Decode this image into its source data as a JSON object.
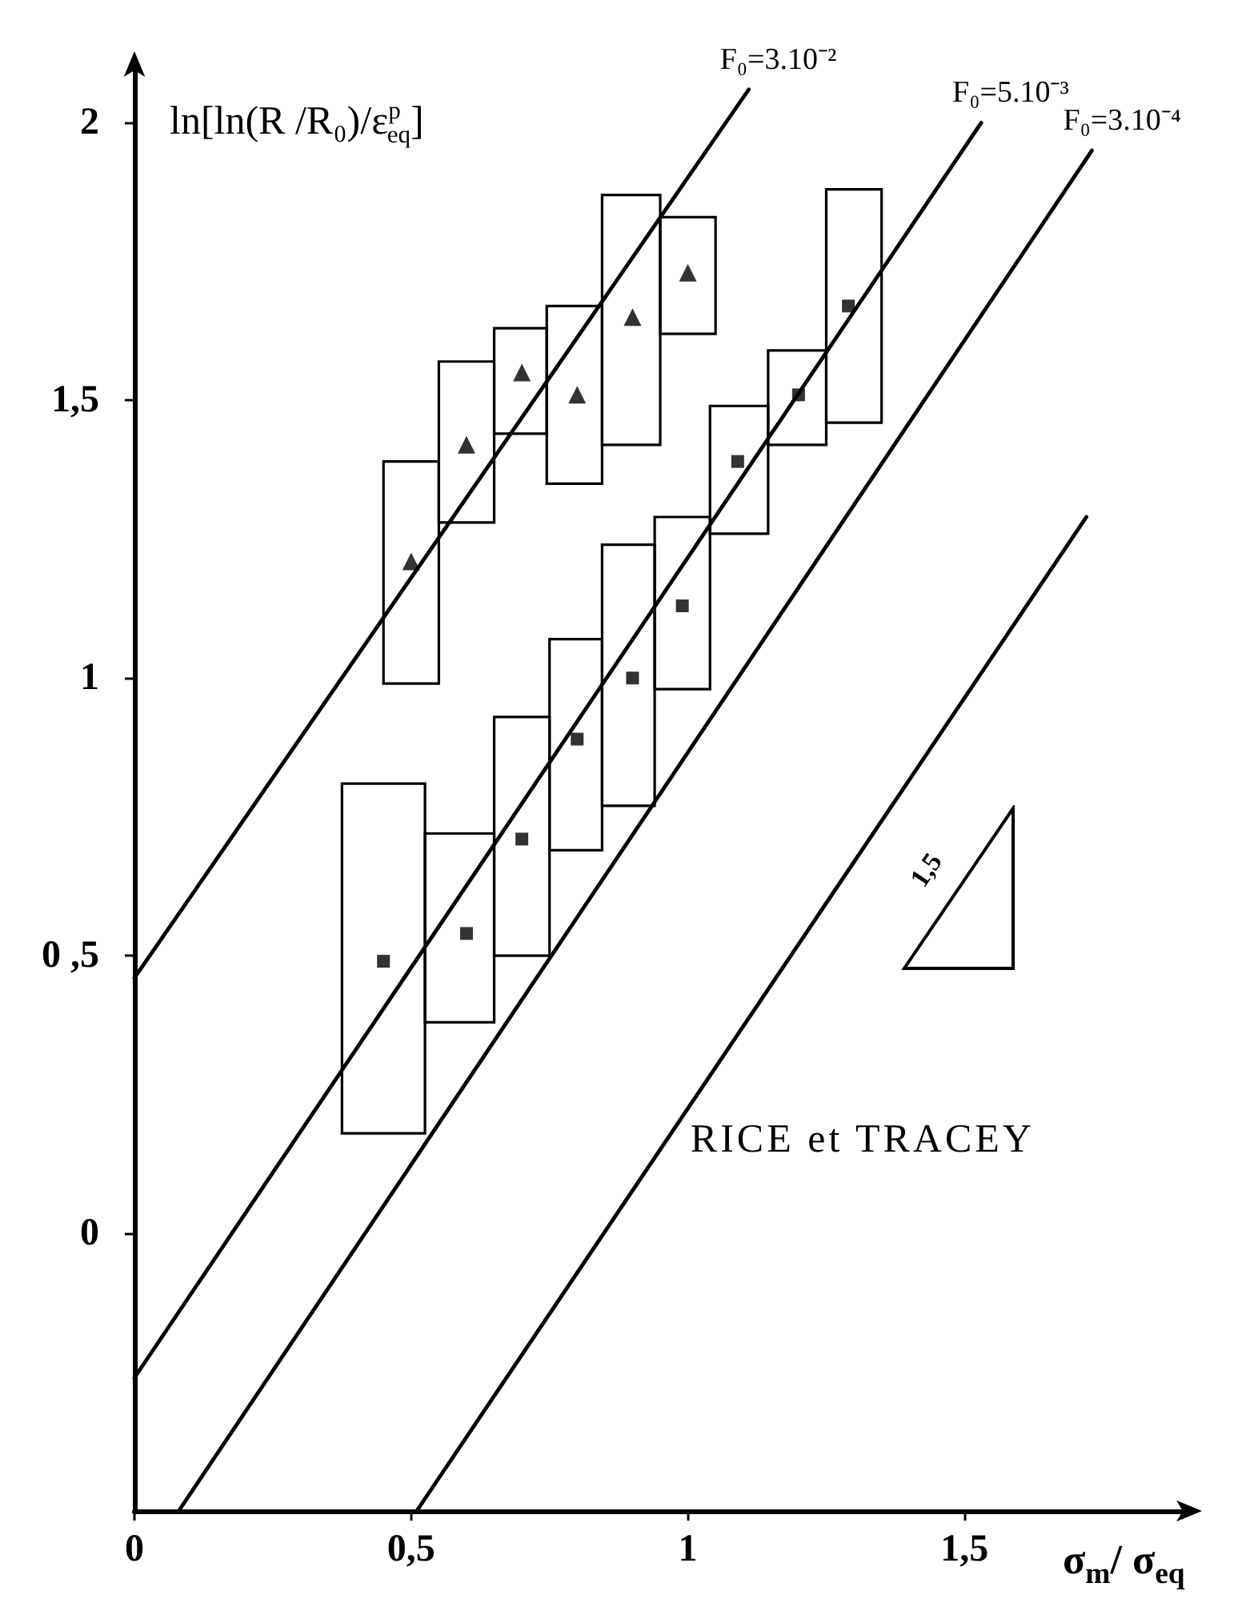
{
  "chart_data": {
    "type": "scatter",
    "xlabel": "σ$_{m}$/ σ$_{eq}$",
    "ylabel": "ln[ln(R /R₀)/ε$^{p}$$_{eq}$]",
    "xlim": [
      0,
      1.9
    ],
    "ylim": [
      -0.5,
      2.1
    ],
    "xticks": [
      0,
      {
        "value": 0.5,
        "label": "0,5"
      },
      1,
      {
        "value": 1.5,
        "label": "1,5"
      }
    ],
    "yticks": [
      0,
      {
        "value": 0.5,
        "label": "0 ,5"
      },
      1,
      {
        "value": 1.5,
        "label": "1,5"
      },
      2
    ],
    "series": [
      {
        "type": "bar",
        "color": "#000000",
        "x": [
          0.45,
          0.6,
          0.7,
          0.8,
          0.89,
          0.99,
          1.09,
          1.2,
          1.3
        ],
        "base": [
          0.18,
          0.38,
          0.5,
          0.69,
          0.77,
          0.98,
          1.26,
          1.42,
          1.46
        ],
        "values": [
          0.63,
          0.34,
          0.43,
          0.38,
          0.47,
          0.31,
          0.23,
          0.17,
          0.42
        ]
      },
      {
        "type": "bar",
        "color": "#000000",
        "x": [
          0.5,
          0.6,
          0.7,
          0.79,
          0.9,
          1.0
        ],
        "base": [
          0.99,
          1.28,
          1.44,
          1.35,
          1.42,
          1.62
        ],
        "values": [
          0.4,
          0.29,
          0.19,
          0.32,
          0.45,
          0.21
        ]
      },
      {
        "type": "line",
        "name": "F₀=3.10⁻²",
        "color": "#000000",
        "marker": "none",
        "x": [
          0,
          1.11
        ],
        "values": [
          0.46,
          2.06
        ]
      },
      {
        "type": "line",
        "name": "F₀=5.10⁻³",
        "color": "#000000",
        "marker": "none",
        "x": [
          0,
          1.53
        ],
        "values": [
          -0.26,
          2.0
        ]
      },
      {
        "type": "line",
        "name": "F₀=3.10⁻⁴",
        "color": "#000000",
        "marker": "none",
        "x": [
          0.08,
          1.73
        ],
        "values": [
          -0.5,
          1.95
        ]
      },
      {
        "type": "line",
        "color": "#000000",
        "marker": "none",
        "x": [
          0.51,
          1.72
        ],
        "values": [
          -0.5,
          1.29
        ]
      },
      {
        "color": "#000000",
        "marker": "square",
        "x": [
          0.45,
          0.6,
          0.7,
          0.8,
          0.9,
          0.99,
          1.09,
          1.2,
          1.29
        ],
        "values": [
          0.49,
          0.54,
          0.71,
          0.89,
          1.0,
          1.13,
          1.39,
          1.51,
          1.67
        ]
      },
      {
        "color": "#000000",
        "marker": "triangle",
        "x": [
          0.5,
          0.6,
          0.7,
          0.8,
          0.9,
          1.0
        ],
        "values": [
          1.21,
          1.42,
          1.55,
          1.51,
          1.65,
          1.73
        ]
      }
    ],
    "annotations": [
      {
        "text": "RICE et TRACEY",
        "x": 0.97,
        "y": 0.17
      },
      "1,5"
    ]
  }
}
